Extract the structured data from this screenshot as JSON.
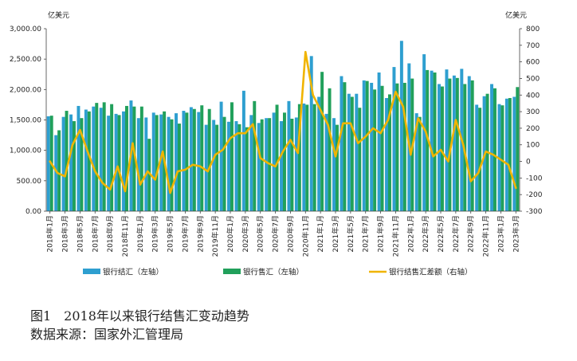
{
  "chart_data": {
    "type": "bar",
    "units": {
      "left": "亿美元",
      "right": "亿美元"
    },
    "categories": [
      "2018年1月",
      "2018年2月",
      "2018年3月",
      "2018年4月",
      "2018年5月",
      "2018年6月",
      "2018年7月",
      "2018年8月",
      "2018年9月",
      "2018年10月",
      "2018年11月",
      "2018年12月",
      "2019年1月",
      "2019年2月",
      "2019年3月",
      "2019年4月",
      "2019年5月",
      "2019年6月",
      "2019年7月",
      "2019年8月",
      "2019年9月",
      "2019年10月",
      "2019年11月",
      "2019年12月",
      "2020年1月",
      "2020年2月",
      "2020年3月",
      "2020年4月",
      "2020年5月",
      "2020年6月",
      "2020年7月",
      "2020年8月",
      "2020年9月",
      "2020年10月",
      "2020年11月",
      "2020年12月",
      "2021年1月",
      "2021年2月",
      "2021年3月",
      "2021年4月",
      "2021年5月",
      "2021年6月",
      "2021年7月",
      "2021年8月",
      "2021年9月",
      "2021年10月",
      "2021年11月",
      "2021年12月",
      "2022年1月",
      "2022年2月",
      "2022年3月",
      "2022年4月",
      "2022年5月",
      "2022年6月",
      "2022年7月",
      "2022年8月",
      "2022年9月",
      "2022年10月",
      "2022年11月",
      "2022年12月",
      "2023年1月",
      "2023年2月",
      "2023年3月"
    ],
    "x_tick_labels": [
      "2018年1月",
      "2018年3月",
      "2018年5月",
      "2018年7月",
      "2018年9月",
      "2018年11月",
      "2019年1月",
      "2019年3月",
      "2019年5月",
      "2019年7月",
      "2019年9月",
      "2019年11月",
      "2020年1月",
      "2020年3月",
      "2020年5月",
      "2020年7月",
      "2020年9月",
      "2020年11月",
      "2021年1月",
      "2021年3月",
      "2021年5月",
      "2021年7月",
      "2021年9月",
      "2021年11月",
      "2022年1月",
      "2022年3月",
      "2022年5月",
      "2022年7月",
      "2022年9月",
      "2022年11月",
      "2023年1月",
      "2023年3月"
    ],
    "series": [
      {
        "name": "银行结汇（左轴）",
        "axis": "left",
        "kind": "bar",
        "color": "#2e9fd0",
        "values": [
          1560,
          1250,
          1550,
          1590,
          1730,
          1670,
          1720,
          1700,
          1570,
          1600,
          1640,
          1820,
          1530,
          1540,
          1620,
          1590,
          1550,
          1610,
          1650,
          1710,
          1630,
          1420,
          1500,
          1800,
          1470,
          1480,
          1980,
          1580,
          1450,
          1530,
          1620,
          1480,
          1810,
          1540,
          1770,
          2550,
          1880,
          1600,
          1530,
          2220,
          1930,
          1930,
          2150,
          2110,
          2280,
          1860,
          2370,
          2800,
          2430,
          1610,
          2580,
          2310,
          2090,
          2330,
          2230,
          2340,
          2220,
          1750,
          1890,
          2090,
          1760,
          1850,
          1880
        ]
      },
      {
        "name": "银行售汇（左轴）",
        "axis": "left",
        "kind": "bar",
        "color": "#21a05b",
        "values": [
          1570,
          1330,
          1650,
          1480,
          1530,
          1640,
          1780,
          1790,
          1760,
          1580,
          1730,
          1720,
          1720,
          1190,
          1580,
          1640,
          1510,
          1440,
          1620,
          1680,
          1740,
          1680,
          1420,
          1550,
          1790,
          1430,
          1380,
          1810,
          1510,
          1530,
          1750,
          1620,
          1520,
          1760,
          1750,
          1760,
          2290,
          2020,
          1420,
          2120,
          1880,
          1700,
          2140,
          2000,
          2060,
          1920,
          2100,
          2110,
          2180,
          1550,
          2320,
          2280,
          2050,
          2180,
          2190,
          2090,
          2150,
          1700,
          1930,
          2020,
          1740,
          1860,
          2040
        ]
      },
      {
        "name": "银行结售汇差额（右轴）",
        "axis": "right",
        "kind": "line",
        "color": "#f0b400",
        "values": [
          0,
          -70,
          -90,
          100,
          190,
          60,
          -60,
          -130,
          -170,
          -30,
          -180,
          110,
          -140,
          -60,
          -110,
          60,
          -190,
          -60,
          -50,
          -20,
          -30,
          -60,
          40,
          70,
          140,
          170,
          170,
          225,
          20,
          -10,
          -30,
          60,
          130,
          50,
          660,
          400,
          310,
          220,
          30,
          230,
          230,
          110,
          150,
          200,
          170,
          250,
          420,
          330,
          40,
          260,
          180,
          30,
          70,
          0,
          250,
          100,
          -120,
          -70,
          60,
          40,
          10,
          -20,
          -160
        ]
      }
    ],
    "left_axis": {
      "min": 0,
      "max": 3000,
      "step": 500,
      "tick_labels": [
        "0.00",
        "500.00",
        "1,000.00",
        "1,500.00",
        "2,000.00",
        "2,500.00",
        "3,000.00"
      ]
    },
    "right_axis": {
      "min": -300,
      "max": 800,
      "step": 100,
      "tick_labels": [
        "-300",
        "-200",
        "-100",
        "0",
        "100",
        "200",
        "300",
        "400",
        "500",
        "600",
        "700",
        "800"
      ]
    },
    "grid": false,
    "legend_position": "bottom"
  },
  "caption": {
    "title": "图1　2018年以来银行结售汇变动趋势",
    "source": "数据来源：国家外汇管理局"
  }
}
